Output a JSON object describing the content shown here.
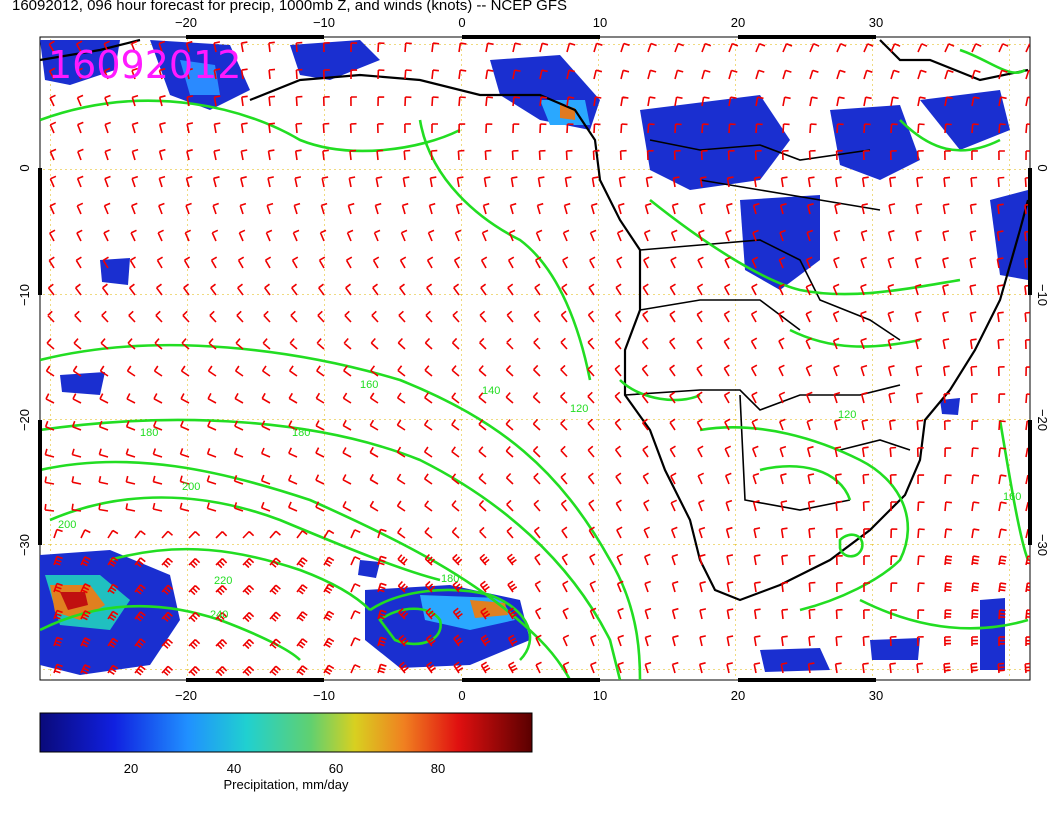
{
  "title": "16092012, 096 hour forecast for precip, 1000mb Z, and winds (knots) -- NCEP GFS",
  "stamp": "16092012",
  "x_ticks_top": [
    "−20",
    "−10",
    "0",
    "10",
    "20",
    "30"
  ],
  "x_ticks_bottom": [
    "−20",
    "−10",
    "0",
    "10",
    "20",
    "30"
  ],
  "y_ticks_left": [
    "0",
    "−10",
    "−20",
    "−30"
  ],
  "y_ticks_right": [
    "0",
    "−10",
    "−20",
    "−30"
  ],
  "contour_labels": [
    "120",
    "140",
    "160",
    "180",
    "200",
    "220",
    "240",
    "120",
    "160",
    "180",
    "180",
    "200"
  ],
  "colorbar": {
    "ticks": [
      "20",
      "40",
      "60",
      "80"
    ],
    "label": "Precipitation, mm/day"
  },
  "colors": {
    "contour": "#22dd22",
    "barb": "#ee0000",
    "grid": "#e0b400",
    "stamp": "#ff1aff"
  }
}
